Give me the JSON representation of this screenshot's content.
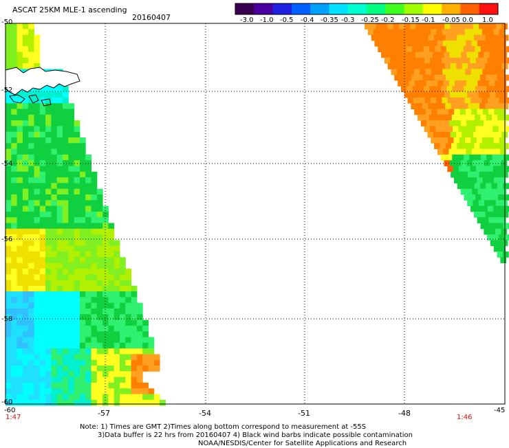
{
  "header": {
    "title": "ASCAT 25KM MLE-1 ascending",
    "date": "20160407"
  },
  "colorbar": {
    "tick_labels": [
      "-3.0",
      "-1.0",
      "-0.5",
      "-0.4",
      "-0.35",
      "-0.3",
      "-0.25",
      "-0.2",
      "-0.15",
      "-0.1",
      "-0.05",
      "0.0",
      "1.0"
    ],
    "colors": [
      "#3a0050",
      "#4a00a0",
      "#2020e0",
      "#0060ff",
      "#00a0ff",
      "#00e0ff",
      "#00ffd0",
      "#00ff80",
      "#40ff20",
      "#a0ff00",
      "#ffff00",
      "#ffb000",
      "#ff6000",
      "#ff1010"
    ]
  },
  "map": {
    "x_tick_labels": [
      "-57",
      "-54",
      "-51",
      "-48",
      "-45"
    ],
    "y_tick_labels": [
      "-50",
      "-52",
      "-54",
      "-56",
      "-58",
      "-60"
    ],
    "corner_lon_label": "-60",
    "time_left": "1:47",
    "time_right": "1:46",
    "gridlines": true,
    "land_outline": "Falkland Islands"
  },
  "notes": {
    "line1": "Note: 1) Times are GMT 2)Times along bottom correspond to measurement at -55S",
    "line2": "3)Data buffer is 22 hrs from 20160407 4) Black wind barbs indicate possible contamination",
    "line3": "NOAA/NESDIS/Center for Satellite Applications and Research"
  }
}
